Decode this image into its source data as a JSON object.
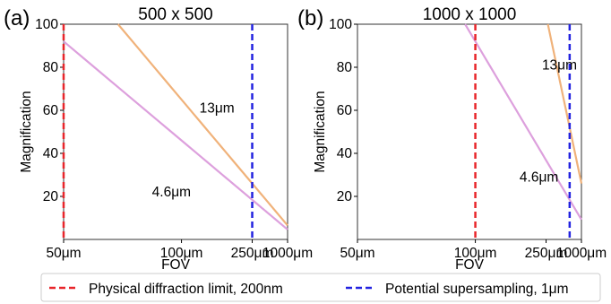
{
  "figure": {
    "legend": {
      "placement": "bottom",
      "items": [
        {
          "label": "Physical diffraction limit, 200nm",
          "color": "#e8262b",
          "style": "dashed"
        },
        {
          "label": "Potential supersampling, 1μm",
          "color": "#2323e0",
          "style": "dashed"
        }
      ]
    }
  },
  "chart_data": [
    {
      "type": "line",
      "panel_label": "(a)",
      "title": "500 x 500",
      "xlabel": "FOV",
      "ylabel": "Magnification",
      "x_scale": "reciprocal",
      "xlim": [
        50,
        1000
      ],
      "ylim": [
        0,
        100
      ],
      "xticks": [
        50,
        100,
        250,
        1000
      ],
      "xtick_labels": [
        "50μm",
        "100μm",
        "250μm",
        "1000μm"
      ],
      "yticks": [
        20,
        40,
        60,
        80,
        100
      ],
      "grid": false,
      "series": [
        {
          "name": "13μm",
          "color": "#f0b27a",
          "x": [
            65,
            80,
            100,
            150,
            200,
            250,
            400,
            600,
            800,
            1000
          ],
          "y": [
            100,
            81.3,
            65,
            43.3,
            32.5,
            26,
            16.3,
            10.8,
            8.1,
            6.5
          ]
        },
        {
          "name": "4.6μm",
          "color": "#dda0dd",
          "x": [
            50,
            60,
            80,
            100,
            150,
            200,
            250,
            400,
            600,
            800,
            1000
          ],
          "y": [
            92,
            76.7,
            57.5,
            46,
            30.7,
            23,
            18.4,
            11.5,
            7.7,
            5.8,
            4.6
          ]
        }
      ],
      "vlines": [
        {
          "x": 50,
          "color": "#e8262b",
          "style": "dashed"
        },
        {
          "x": 250,
          "color": "#2323e0",
          "style": "dashed"
        }
      ],
      "annotations": [
        {
          "text": "13μm",
          "x": 118,
          "y": 61
        },
        {
          "text": "4.6μm",
          "x": 80,
          "y": 22
        }
      ]
    },
    {
      "type": "line",
      "panel_label": "(b)",
      "title": "1000 x 1000",
      "xlabel": "FOV",
      "ylabel": "Magnification",
      "x_scale": "reciprocal",
      "xlim": [
        50,
        1000
      ],
      "ylim": [
        0,
        100
      ],
      "xticks": [
        50,
        100,
        250,
        1000
      ],
      "xtick_labels": [
        "50μm",
        "100μm",
        "250μm",
        "1000μm"
      ],
      "yticks": [
        20,
        40,
        60,
        80,
        100
      ],
      "grid": false,
      "series": [
        {
          "name": "13μm",
          "color": "#f0b27a",
          "x": [
            260,
            300,
            400,
            500,
            600,
            800,
            1000
          ],
          "y": [
            100,
            86.7,
            65,
            52,
            43.3,
            32.5,
            26
          ]
        },
        {
          "name": "4.6μm",
          "color": "#dda0dd",
          "x": [
            92,
            100,
            150,
            200,
            300,
            500,
            700,
            1000
          ],
          "y": [
            100,
            92,
            61.3,
            46,
            30.7,
            18.4,
            13.1,
            9.2
          ]
        }
      ],
      "vlines": [
        {
          "x": 100,
          "color": "#e8262b",
          "style": "dashed"
        },
        {
          "x": 500,
          "color": "#2323e0",
          "style": "dashed"
        }
      ],
      "annotations": [
        {
          "text": "13μm",
          "x": 230,
          "y": 81
        },
        {
          "text": "4.6μm",
          "x": 160,
          "y": 29
        }
      ]
    }
  ]
}
